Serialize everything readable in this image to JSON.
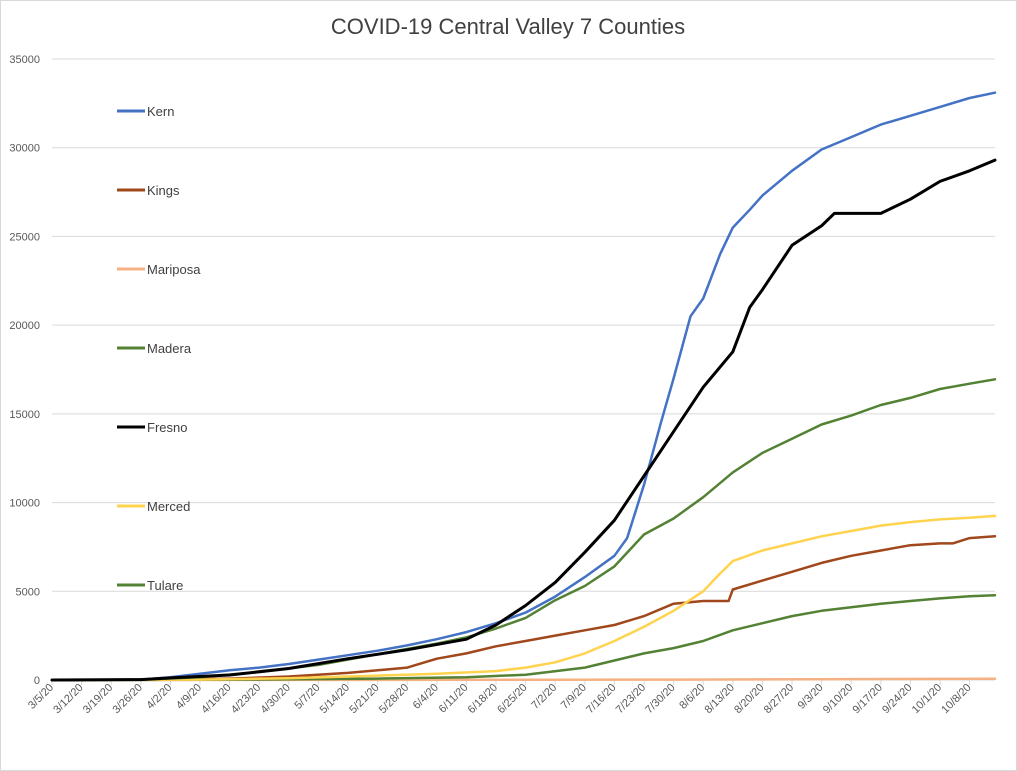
{
  "chart_data": {
    "type": "line",
    "title": "COVID-19 Central Valley 7 Counties",
    "xlabel": "",
    "ylabel": "",
    "ylim": [
      0,
      35000
    ],
    "y_ticks": [
      0,
      5000,
      10000,
      15000,
      20000,
      25000,
      30000,
      35000
    ],
    "x_range": [
      "3/5/20",
      "10/14/20"
    ],
    "x_tick_labels": [
      "3/5/20",
      "3/12/20",
      "3/19/20",
      "3/26/20",
      "4/2/20",
      "4/9/20",
      "4/16/20",
      "4/23/20",
      "4/30/20",
      "5/7/20",
      "5/14/20",
      "5/21/20",
      "5/28/20",
      "6/4/20",
      "6/11/20",
      "6/18/20",
      "6/25/20",
      "7/2/20",
      "7/9/20",
      "7/16/20",
      "7/23/20",
      "7/30/20",
      "8/6/20",
      "8/13/20",
      "8/20/20",
      "8/27/20",
      "9/3/20",
      "9/10/20",
      "9/17/20",
      "9/24/20",
      "10/1/20",
      "10/8/20"
    ],
    "grid": true,
    "legend_position": "left",
    "series": [
      {
        "name": "Kern",
        "color": "#4472C4",
        "points": [
          [
            "3/5/20",
            0
          ],
          [
            "3/26/20",
            20
          ],
          [
            "4/2/20",
            150
          ],
          [
            "4/9/20",
            350
          ],
          [
            "4/16/20",
            550
          ],
          [
            "4/23/20",
            700
          ],
          [
            "4/30/20",
            900
          ],
          [
            "5/7/20",
            1150
          ],
          [
            "5/14/20",
            1400
          ],
          [
            "5/21/20",
            1650
          ],
          [
            "5/28/20",
            1950
          ],
          [
            "6/4/20",
            2300
          ],
          [
            "6/11/20",
            2700
          ],
          [
            "6/18/20",
            3200
          ],
          [
            "6/25/20",
            3800
          ],
          [
            "7/2/20",
            4700
          ],
          [
            "7/9/20",
            5800
          ],
          [
            "7/16/20",
            7000
          ],
          [
            "7/19/20",
            8000
          ],
          [
            "7/23/20",
            11000
          ],
          [
            "7/27/20",
            14500
          ],
          [
            "7/30/20",
            17000
          ],
          [
            "8/3/20",
            20500
          ],
          [
            "8/6/20",
            21500
          ],
          [
            "8/10/20",
            24000
          ],
          [
            "8/13/20",
            25500
          ],
          [
            "8/17/20",
            26500
          ],
          [
            "8/20/20",
            27300
          ],
          [
            "8/27/20",
            28700
          ],
          [
            "9/3/20",
            29900
          ],
          [
            "9/10/20",
            30600
          ],
          [
            "9/17/20",
            31300
          ],
          [
            "9/24/20",
            31800
          ],
          [
            "10/1/20",
            32300
          ],
          [
            "10/8/20",
            32800
          ],
          [
            "10/14/20",
            33100
          ]
        ]
      },
      {
        "name": "Kings",
        "color": "#A0471B",
        "points": [
          [
            "3/5/20",
            0
          ],
          [
            "4/2/20",
            20
          ],
          [
            "4/16/20",
            80
          ],
          [
            "4/30/20",
            200
          ],
          [
            "5/14/20",
            400
          ],
          [
            "5/28/20",
            700
          ],
          [
            "6/4/20",
            1200
          ],
          [
            "6/11/20",
            1500
          ],
          [
            "6/18/20",
            1900
          ],
          [
            "6/25/20",
            2200
          ],
          [
            "7/2/20",
            2500
          ],
          [
            "7/9/20",
            2800
          ],
          [
            "7/16/20",
            3100
          ],
          [
            "7/23/20",
            3600
          ],
          [
            "7/30/20",
            4300
          ],
          [
            "8/6/20",
            4450
          ],
          [
            "8/12/20",
            4450
          ],
          [
            "8/13/20",
            5100
          ],
          [
            "8/20/20",
            5600
          ],
          [
            "8/27/20",
            6100
          ],
          [
            "9/3/20",
            6600
          ],
          [
            "9/10/20",
            7000
          ],
          [
            "9/17/20",
            7300
          ],
          [
            "9/24/20",
            7600
          ],
          [
            "10/1/20",
            7700
          ],
          [
            "10/4/20",
            7700
          ],
          [
            "10/8/20",
            8000
          ],
          [
            "10/14/20",
            8100
          ]
        ]
      },
      {
        "name": "Mariposa",
        "color": "#F4B183",
        "points": [
          [
            "3/5/20",
            0
          ],
          [
            "5/1/20",
            5
          ],
          [
            "7/1/20",
            15
          ],
          [
            "8/1/20",
            25
          ],
          [
            "9/1/20",
            45
          ],
          [
            "10/1/20",
            60
          ],
          [
            "10/14/20",
            65
          ]
        ]
      },
      {
        "name": "Madera",
        "color": "#548235",
        "points": [
          [
            "3/5/20",
            0
          ],
          [
            "3/26/20",
            10
          ],
          [
            "4/9/20",
            150
          ],
          [
            "4/23/20",
            450
          ],
          [
            "5/7/20",
            850
          ],
          [
            "5/21/20",
            1450
          ],
          [
            "6/4/20",
            2050
          ],
          [
            "6/11/20",
            2400
          ],
          [
            "6/18/20",
            2900
          ],
          [
            "6/25/20",
            3500
          ],
          [
            "7/2/20",
            4500
          ],
          [
            "7/9/20",
            5300
          ],
          [
            "7/16/20",
            6400
          ],
          [
            "7/23/20",
            8200
          ],
          [
            "7/30/20",
            9100
          ],
          [
            "8/6/20",
            10300
          ],
          [
            "8/13/20",
            11700
          ],
          [
            "8/20/20",
            12800
          ],
          [
            "8/27/20",
            13600
          ],
          [
            "9/3/20",
            14400
          ],
          [
            "9/10/20",
            14900
          ],
          [
            "9/17/20",
            15500
          ],
          [
            "9/24/20",
            15900
          ],
          [
            "10/1/20",
            16400
          ],
          [
            "10/8/20",
            16700
          ],
          [
            "10/14/20",
            16950
          ]
        ]
      },
      {
        "name": "Fresno",
        "color": "#000000",
        "points": [
          [
            "3/5/20",
            0
          ],
          [
            "3/26/20",
            20
          ],
          [
            "4/2/20",
            120
          ],
          [
            "4/16/20",
            280
          ],
          [
            "4/30/20",
            650
          ],
          [
            "5/14/20",
            1200
          ],
          [
            "5/28/20",
            1700
          ],
          [
            "6/11/20",
            2300
          ],
          [
            "6/18/20",
            3100
          ],
          [
            "6/25/20",
            4200
          ],
          [
            "7/2/20",
            5500
          ],
          [
            "7/9/20",
            7200
          ],
          [
            "7/16/20",
            9000
          ],
          [
            "7/23/20",
            11500
          ],
          [
            "7/30/20",
            14000
          ],
          [
            "8/6/20",
            16500
          ],
          [
            "8/13/20",
            18500
          ],
          [
            "8/17/20",
            21000
          ],
          [
            "8/20/20",
            22000
          ],
          [
            "8/27/20",
            24500
          ],
          [
            "9/3/20",
            25600
          ],
          [
            "9/6/20",
            26300
          ],
          [
            "9/17/20",
            26300
          ],
          [
            "9/24/20",
            27100
          ],
          [
            "10/1/20",
            28100
          ],
          [
            "10/8/20",
            28700
          ],
          [
            "10/14/20",
            29300
          ]
        ]
      },
      {
        "name": "Merced",
        "color": "#FFD34E",
        "points": [
          [
            "3/5/20",
            0
          ],
          [
            "4/9/20",
            20
          ],
          [
            "4/30/20",
            100
          ],
          [
            "5/21/20",
            250
          ],
          [
            "6/4/20",
            350
          ],
          [
            "6/18/20",
            500
          ],
          [
            "6/25/20",
            700
          ],
          [
            "7/2/20",
            1000
          ],
          [
            "7/9/20",
            1500
          ],
          [
            "7/16/20",
            2200
          ],
          [
            "7/23/20",
            3000
          ],
          [
            "7/30/20",
            3900
          ],
          [
            "8/6/20",
            5000
          ],
          [
            "8/10/20",
            6000
          ],
          [
            "8/13/20",
            6700
          ],
          [
            "8/20/20",
            7300
          ],
          [
            "8/27/20",
            7700
          ],
          [
            "9/3/20",
            8100
          ],
          [
            "9/10/20",
            8400
          ],
          [
            "9/17/20",
            8700
          ],
          [
            "9/24/20",
            8900
          ],
          [
            "10/1/20",
            9050
          ],
          [
            "10/8/20",
            9150
          ],
          [
            "10/14/20",
            9250
          ]
        ]
      },
      {
        "name": "Tulare",
        "color": "#548235",
        "points": [
          [
            "3/5/20",
            0
          ],
          [
            "4/9/20",
            10
          ],
          [
            "4/30/20",
            40
          ],
          [
            "5/21/20",
            80
          ],
          [
            "6/11/20",
            150
          ],
          [
            "6/25/20",
            300
          ],
          [
            "7/9/20",
            700
          ],
          [
            "7/16/20",
            1100
          ],
          [
            "7/23/20",
            1500
          ],
          [
            "7/30/20",
            1800
          ],
          [
            "8/6/20",
            2200
          ],
          [
            "8/13/20",
            2800
          ],
          [
            "8/20/20",
            3200
          ],
          [
            "8/27/20",
            3600
          ],
          [
            "9/3/20",
            3900
          ],
          [
            "9/10/20",
            4100
          ],
          [
            "9/17/20",
            4300
          ],
          [
            "9/24/20",
            4450
          ],
          [
            "10/1/20",
            4600
          ],
          [
            "10/8/20",
            4720
          ],
          [
            "10/14/20",
            4780
          ]
        ]
      }
    ]
  }
}
